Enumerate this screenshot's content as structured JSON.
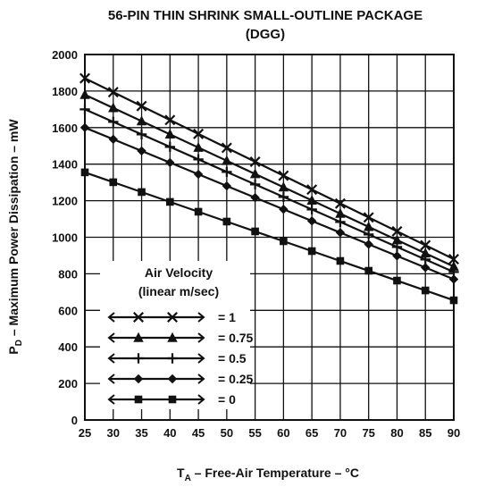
{
  "chart_data": {
    "type": "line",
    "title": "56-PIN THIN SHRINK SMALL-OUTLINE PACKAGE",
    "subtitle": "(DGG)",
    "xlabel": {
      "prefix": "T",
      "sub": "A",
      "text": " – Free-Air Temperature – °C"
    },
    "ylabel": {
      "prefix": "P",
      "sub": "D",
      "text": " – Maximum Power Dissipation – mW"
    },
    "xlim": [
      25,
      90
    ],
    "ylim": [
      0,
      2000
    ],
    "x_ticks": [
      25,
      30,
      35,
      40,
      45,
      50,
      55,
      60,
      65,
      70,
      75,
      80,
      85,
      90
    ],
    "y_ticks": [
      0,
      200,
      400,
      600,
      800,
      1000,
      1200,
      1400,
      1600,
      1800,
      2000
    ],
    "grid": true,
    "legend": {
      "title_line1": "Air Velocity",
      "title_line2": "(linear m/sec)",
      "placement": "lower-left"
    },
    "x": [
      25,
      30,
      35,
      40,
      45,
      50,
      55,
      60,
      65,
      70,
      75,
      80,
      85,
      90
    ],
    "series": [
      {
        "name": "= 1",
        "marker": "x",
        "start": 1870,
        "end": 880
      },
      {
        "name": "= 0.75",
        "marker": "triangle",
        "start": 1780,
        "end": 840
      },
      {
        "name": "= 0.5",
        "marker": "plus",
        "start": 1700,
        "end": 810
      },
      {
        "name": "= 0.25",
        "marker": "diamond",
        "start": 1600,
        "end": 770
      },
      {
        "name": "= 0",
        "marker": "square",
        "start": 1355,
        "end": 655
      }
    ]
  }
}
